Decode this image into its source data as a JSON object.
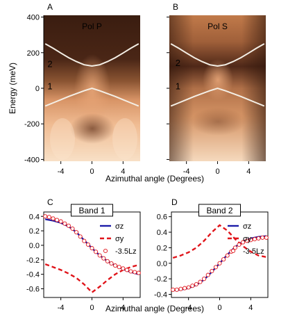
{
  "figure": {
    "panel_labels": [
      "A",
      "B",
      "C",
      "D"
    ],
    "top_xlabel": "Azimuthal angle (Degrees)",
    "bottom_xlabel": "Azimuthal angle (Degrees)",
    "top_ylabel": "Energy (meV)"
  },
  "colors": {
    "sigma_z": "#1c1ca8",
    "sigma_y": "#e0141a",
    "lz": "#e0141a",
    "band_curve": "#f4efe6"
  },
  "chart_data": [
    {
      "panel": "A",
      "type": "heatmap",
      "title": "Pol P",
      "xlabel": "",
      "ylabel": "Energy (meV)",
      "xlim": [
        -6.2,
        6.2
      ],
      "ylim": [
        -410,
        410
      ],
      "xticks": [
        -4,
        0,
        4
      ],
      "yticks": [
        -400,
        -200,
        0,
        200,
        400
      ],
      "band_labels": [
        "1",
        "2"
      ],
      "band_label_positions": [
        {
          "label": "1",
          "x": -5.4,
          "y": -5
        },
        {
          "label": "2",
          "x": -5.4,
          "y": 120
        }
      ],
      "bands": [
        {
          "name": "1",
          "x": [
            -6,
            -5,
            -4,
            -3,
            -2,
            -1,
            0,
            1,
            2,
            3,
            4,
            5,
            6
          ],
          "y": [
            -100,
            -82,
            -64,
            -46,
            -30,
            -14,
            0,
            -14,
            -30,
            -46,
            -64,
            -82,
            -100
          ]
        },
        {
          "name": "2",
          "x": [
            -6,
            -5,
            -4,
            -3,
            -2,
            -1,
            0,
            1,
            2,
            3,
            4,
            5,
            6
          ],
          "y": [
            250,
            225,
            198,
            172,
            150,
            132,
            125,
            132,
            150,
            172,
            198,
            225,
            250
          ]
        }
      ]
    },
    {
      "panel": "B",
      "type": "heatmap",
      "title": "Pol S",
      "xlabel": "",
      "ylabel": "",
      "xlim": [
        -6.2,
        6.2
      ],
      "ylim": [
        -410,
        410
      ],
      "xticks": [
        -4,
        0,
        4
      ],
      "yticks": [
        -400,
        -200,
        0,
        200,
        400
      ],
      "band_labels": [
        "1",
        "2"
      ],
      "band_label_positions": [
        {
          "label": "1",
          "x": -5.1,
          "y": -5
        },
        {
          "label": "2",
          "x": -5.1,
          "y": 125
        }
      ],
      "bands": [
        {
          "name": "1",
          "x": [
            -6,
            -5,
            -4,
            -3,
            -2,
            -1,
            0,
            1,
            2,
            3,
            4,
            5,
            6
          ],
          "y": [
            -100,
            -82,
            -64,
            -46,
            -30,
            -14,
            0,
            -14,
            -30,
            -46,
            -64,
            -82,
            -100
          ]
        },
        {
          "name": "2",
          "x": [
            -6,
            -5,
            -4,
            -3,
            -2,
            -1,
            0,
            1,
            2,
            3,
            4,
            5,
            6
          ],
          "y": [
            250,
            225,
            198,
            172,
            150,
            132,
            125,
            132,
            150,
            172,
            198,
            225,
            250
          ]
        }
      ]
    },
    {
      "panel": "C",
      "type": "line",
      "title": "Band 1",
      "xlabel": "",
      "ylabel": "",
      "xlim": [
        -6.2,
        6.2
      ],
      "ylim": [
        -0.72,
        0.46
      ],
      "xticks": [
        -4,
        0,
        4
      ],
      "yticks": [
        -0.6,
        -0.4,
        -0.2,
        0.0,
        0.2,
        0.4
      ],
      "ytick_labels": [
        "-0.6",
        "-0.4",
        "-0.2",
        "0.0",
        "0.2",
        "0.4"
      ],
      "legend": [
        "σz",
        "σy",
        "-3.5Lz"
      ],
      "series": [
        {
          "name": "σz",
          "style": "solid",
          "x": [
            -6,
            -5,
            -4,
            -3,
            -2,
            -1,
            0,
            1,
            2,
            3,
            4,
            5,
            6
          ],
          "y": [
            0.36,
            0.34,
            0.31,
            0.26,
            0.18,
            0.07,
            -0.04,
            -0.14,
            -0.22,
            -0.28,
            -0.33,
            -0.37,
            -0.4
          ]
        },
        {
          "name": "σy",
          "style": "dashed",
          "x": [
            -6,
            -5,
            -4,
            -3,
            -2,
            -1,
            0,
            1,
            2,
            3,
            4,
            5,
            6
          ],
          "y": [
            -0.26,
            -0.3,
            -0.34,
            -0.39,
            -0.45,
            -0.54,
            -0.65,
            -0.57,
            -0.48,
            -0.4,
            -0.34,
            -0.3,
            -0.27
          ]
        },
        {
          "name": "-3.5Lz",
          "style": "markers",
          "x": [
            -6,
            -5.5,
            -5,
            -4.5,
            -4,
            -3.5,
            -3,
            -2.5,
            -2,
            -1.5,
            -1,
            -0.5,
            0,
            0.5,
            1,
            1.5,
            2,
            2.5,
            3,
            3.5,
            4,
            4.5,
            5,
            5.5,
            6
          ],
          "y": [
            0.4,
            0.39,
            0.37,
            0.35,
            0.33,
            0.3,
            0.27,
            0.23,
            0.18,
            0.12,
            0.06,
            0.01,
            -0.04,
            -0.09,
            -0.14,
            -0.18,
            -0.22,
            -0.25,
            -0.28,
            -0.3,
            -0.32,
            -0.34,
            -0.36,
            -0.37,
            -0.38
          ]
        }
      ]
    },
    {
      "panel": "D",
      "type": "line",
      "title": "Band 2",
      "xlabel": "",
      "ylabel": "",
      "xlim": [
        -6.2,
        6.2
      ],
      "ylim": [
        -0.44,
        0.66
      ],
      "xticks": [
        -4,
        0,
        4
      ],
      "yticks": [
        -0.4,
        -0.2,
        0.0,
        0.2,
        0.4,
        0.6
      ],
      "ytick_labels": [
        "-0.4",
        "-0.2",
        "0.0",
        "0.2",
        "0.4",
        "0.6"
      ],
      "legend": [
        "σz",
        "σy",
        "-3.5Lz"
      ],
      "series": [
        {
          "name": "σz",
          "style": "solid",
          "x": [
            -6,
            -5,
            -4,
            -3,
            -2,
            -1,
            0,
            1,
            2,
            3,
            4,
            5,
            6
          ],
          "y": [
            -0.35,
            -0.34,
            -0.32,
            -0.28,
            -0.21,
            -0.11,
            0.0,
            0.11,
            0.21,
            0.28,
            0.32,
            0.34,
            0.35
          ]
        },
        {
          "name": "σy",
          "style": "dashed",
          "x": [
            -6,
            -5,
            -4,
            -3,
            -2,
            -1,
            0,
            1,
            2,
            3,
            4,
            5,
            6
          ],
          "y": [
            0.07,
            0.1,
            0.14,
            0.2,
            0.29,
            0.4,
            0.49,
            0.42,
            0.31,
            0.22,
            0.15,
            0.1,
            0.08
          ]
        },
        {
          "name": "-3.5Lz",
          "style": "markers",
          "x": [
            -6,
            -5.5,
            -5,
            -4.5,
            -4,
            -3.5,
            -3,
            -2.5,
            -2,
            -1.5,
            -1,
            -0.5,
            0,
            0.5,
            1,
            1.5,
            2,
            2.5,
            3,
            3.5,
            4,
            4.5,
            5,
            5.5,
            6
          ],
          "y": [
            -0.34,
            -0.34,
            -0.33,
            -0.32,
            -0.31,
            -0.29,
            -0.27,
            -0.24,
            -0.2,
            -0.15,
            -0.1,
            -0.05,
            0.0,
            0.05,
            0.1,
            0.15,
            0.2,
            0.24,
            0.27,
            0.29,
            0.3,
            0.31,
            0.32,
            0.33,
            0.33
          ]
        }
      ]
    }
  ]
}
